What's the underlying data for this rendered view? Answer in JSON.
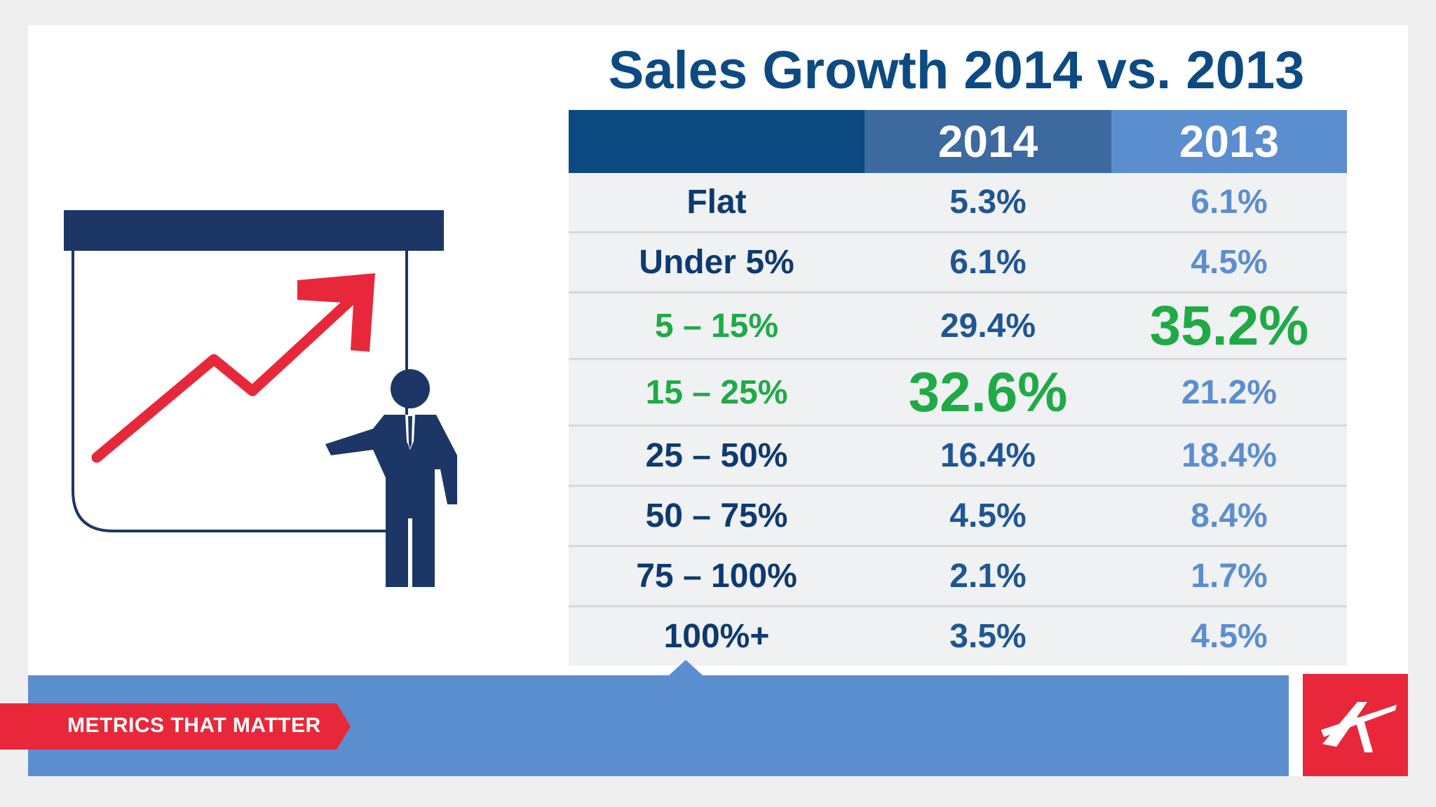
{
  "slide": {
    "title": "Sales Growth 2014 vs. 2013",
    "banner_label": "METRICS THAT MATTER",
    "colors": {
      "title_navy": "#0d4a82",
      "header_2014": "#3d6a9e",
      "header_2013": "#5b8ecf",
      "highlight_green": "#1faa46",
      "brand_red": "#e8283a",
      "bar_blue": "#5b8ecf"
    },
    "icons": [
      "presentation-board-icon",
      "rising-arrow-icon",
      "presenter-person-icon",
      "brand-logo-icon"
    ]
  },
  "chart_data": {
    "type": "table",
    "title": "Sales Growth 2014 vs. 2013",
    "columns": [
      "",
      "2014",
      "2013"
    ],
    "rows": [
      {
        "category": "Flat",
        "v2014": "5.3%",
        "v2013": "6.1%",
        "highlight": ""
      },
      {
        "category": "Under 5%",
        "v2014": "6.1%",
        "v2013": "4.5%",
        "highlight": ""
      },
      {
        "category": "5 – 15%",
        "v2014": "29.4%",
        "v2013": "35.2%",
        "highlight": "2013"
      },
      {
        "category": "15 – 25%",
        "v2014": "32.6%",
        "v2013": "21.2%",
        "highlight": "2014"
      },
      {
        "category": "25 – 50%",
        "v2014": "16.4%",
        "v2013": "18.4%",
        "highlight": ""
      },
      {
        "category": "50 – 75%",
        "v2014": "4.5%",
        "v2013": "8.4%",
        "highlight": ""
      },
      {
        "category": "75 – 100%",
        "v2014": "2.1%",
        "v2013": "1.7%",
        "highlight": ""
      },
      {
        "category": "100%+",
        "v2014": "3.5%",
        "v2013": "4.5%",
        "highlight": ""
      }
    ],
    "series": [
      {
        "name": "2014",
        "values": [
          5.3,
          6.1,
          29.4,
          32.6,
          16.4,
          4.5,
          2.1,
          3.5
        ]
      },
      {
        "name": "2013",
        "values": [
          6.1,
          4.5,
          35.2,
          21.2,
          18.4,
          8.4,
          1.7,
          4.5
        ]
      }
    ]
  }
}
